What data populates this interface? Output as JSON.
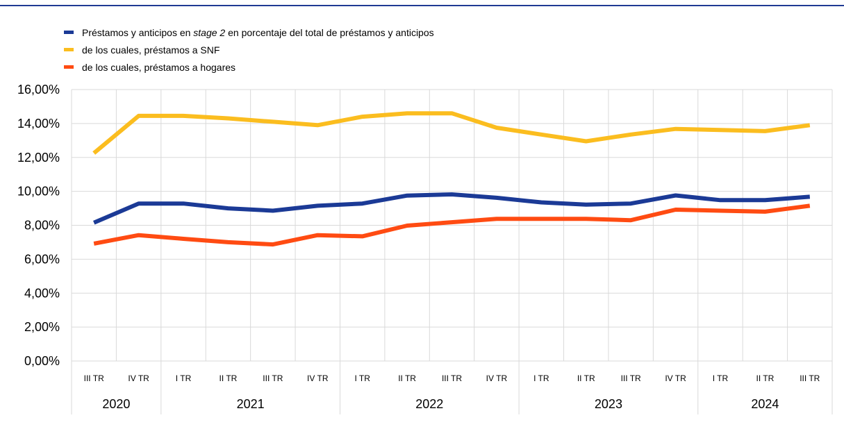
{
  "colors": {
    "top_rule": "#1f3a93",
    "grid": "#d9d9d9"
  },
  "chart_data": {
    "type": "line",
    "quarters": [
      "III TR",
      "IV TR",
      "I TR",
      "II TR",
      "III TR",
      "IV TR",
      "I TR",
      "II TR",
      "III TR",
      "IV TR",
      "I TR",
      "II TR",
      "III TR",
      "IV TR",
      "I TR",
      "II TR",
      "III TR"
    ],
    "years": [
      {
        "label": "2020",
        "count": 2
      },
      {
        "label": "2021",
        "count": 4
      },
      {
        "label": "2022",
        "count": 4
      },
      {
        "label": "2023",
        "count": 4
      },
      {
        "label": "2024",
        "count": 3
      }
    ],
    "ylim": [
      0,
      16
    ],
    "yticks": [
      0,
      2,
      4,
      6,
      8,
      10,
      12,
      14,
      16
    ],
    "ytick_labels": [
      "0,00%",
      "2,00%",
      "4,00%",
      "6,00%",
      "8,00%",
      "10,00%",
      "12,00%",
      "14,00%",
      "16,00%"
    ],
    "grid": true,
    "legend_position": "top-left",
    "series": [
      {
        "name_pre": "Préstamos y anticipos en ",
        "name_italic": "stage 2",
        "name_post": " en porcentaje del total de préstamos y anticipos",
        "color": "#1b3a96",
        "values": [
          8.15,
          9.28,
          9.28,
          9.0,
          8.86,
          9.15,
          9.28,
          9.75,
          9.82,
          9.62,
          9.35,
          9.22,
          9.28,
          9.76,
          9.48,
          9.48,
          9.68
        ]
      },
      {
        "name": "de los cuales, préstamos a SNF",
        "color": "#fbbd1f",
        "values": [
          12.25,
          14.45,
          14.45,
          14.3,
          14.1,
          13.9,
          14.4,
          14.6,
          14.6,
          13.75,
          13.35,
          12.95,
          13.35,
          13.68,
          13.62,
          13.55,
          13.9
        ]
      },
      {
        "name": "de los cuales, préstamos a hogares",
        "color": "#ff4b12",
        "values": [
          6.92,
          7.42,
          7.2,
          7.0,
          6.87,
          7.42,
          7.35,
          7.98,
          8.18,
          8.38,
          8.38,
          8.38,
          8.3,
          8.92,
          8.86,
          8.8,
          9.15
        ]
      }
    ]
  }
}
